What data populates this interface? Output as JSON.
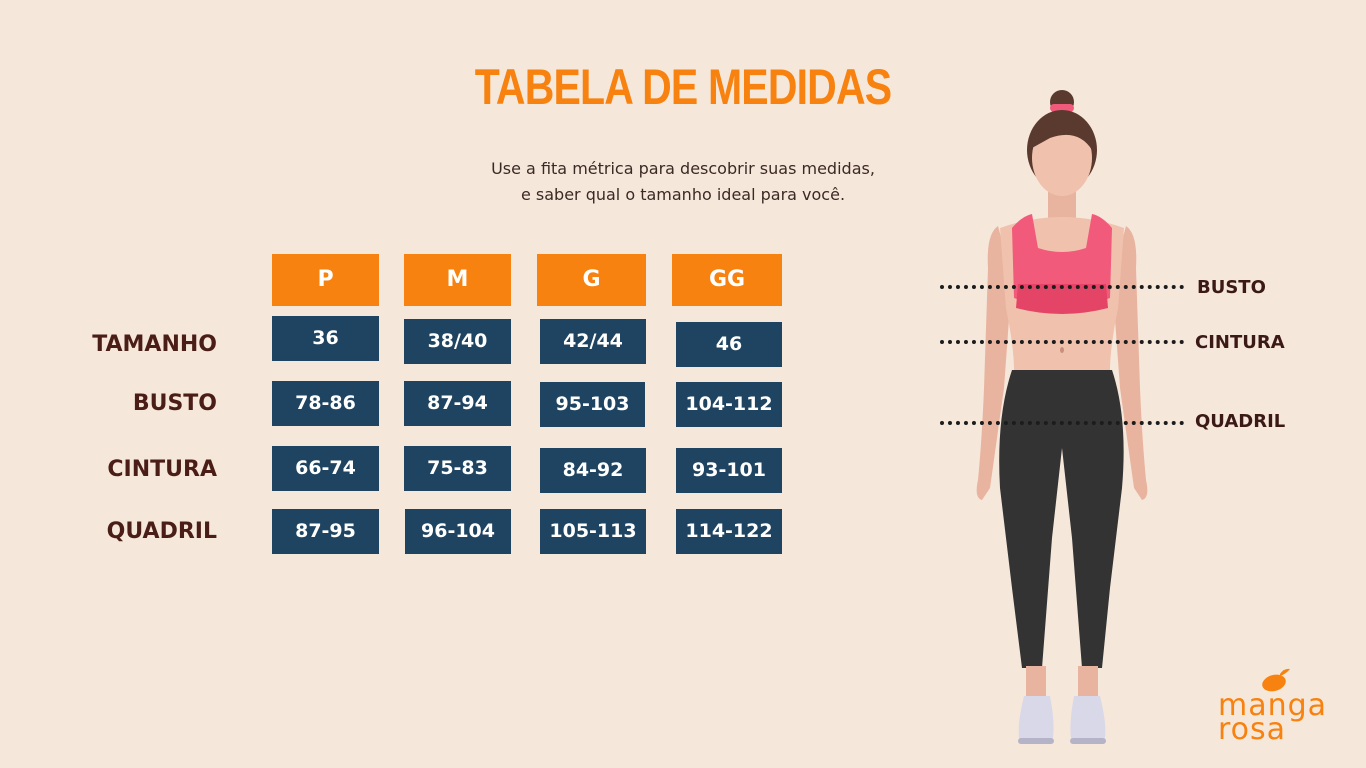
{
  "title": "TABELA DE MEDIDAS",
  "subtitle_line1": "Use a fita métrica para descobrir suas medidas,",
  "subtitle_line2": "e saber qual o tamanho ideal para você.",
  "sizes": [
    "P",
    "M",
    "G",
    "GG"
  ],
  "rows": [
    {
      "label": "TAMANHO",
      "values": [
        "36",
        "38/40",
        "42/44",
        "46"
      ]
    },
    {
      "label": "BUSTO",
      "values": [
        "78-86",
        "87-94",
        "95-103",
        "104-112"
      ]
    },
    {
      "label": "CINTURA",
      "values": [
        "66-74",
        "75-83",
        "84-92",
        "93-101"
      ]
    },
    {
      "label": "QUADRIL",
      "values": [
        "87-95",
        "96-104",
        "105-113",
        "114-122"
      ]
    }
  ],
  "figure_labels": {
    "bust": "BUSTO",
    "waist": "CINTURA",
    "hip": "QUADRIL"
  },
  "brand": {
    "line1": "manga",
    "line2": "rosa"
  },
  "colors": {
    "accent": "#f7820f",
    "cell_bg": "#1f4462",
    "background": "#f6e7db",
    "label_text": "#4a1e17"
  }
}
